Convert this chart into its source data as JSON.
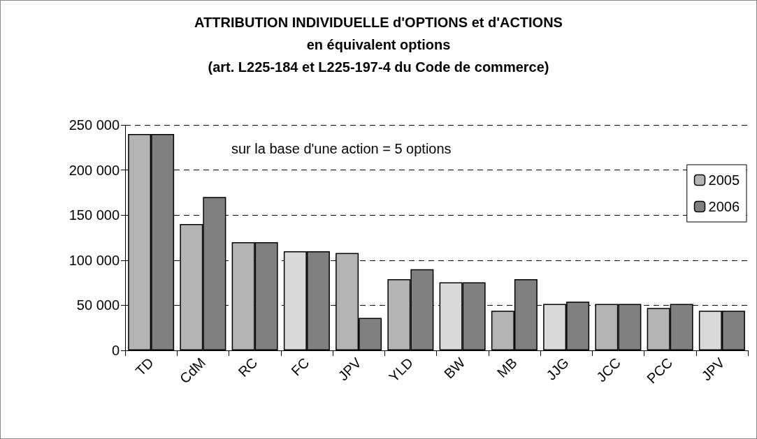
{
  "chart_data": {
    "type": "bar",
    "title": "ATTRIBUTION INDIVIDUELLE d'OPTIONS et d'ACTIONS\nen équivalent options\n(art. L225-184 et L225-197-4 du Code de commerce)",
    "categories": [
      "TD",
      "CdM",
      "RC",
      "FC",
      "JPV",
      "YLD",
      "BW",
      "MB",
      "JJG",
      "JCC",
      "PCC",
      "JPV"
    ],
    "series": [
      {
        "name": "2005",
        "color": "#b4b4b4",
        "colors": [
          "#b4b4b4",
          "#b4b4b4",
          "#b4b4b4",
          "#d9d9d9",
          "#b4b4b4",
          "#b4b4b4",
          "#d9d9d9",
          "#b4b4b4",
          "#d9d9d9",
          "#b4b4b4",
          "#b4b4b4",
          "#d9d9d9"
        ],
        "values": [
          240000,
          140000,
          120000,
          110000,
          108000,
          79000,
          75500,
          44000,
          51500,
          51500,
          47000,
          44000
        ]
      },
      {
        "name": "2006",
        "color": "#808080",
        "values": [
          240000,
          170000,
          120000,
          110000,
          36000,
          90000,
          75500,
          79000,
          54000,
          51500,
          51500,
          44000
        ]
      }
    ],
    "ylim": [
      0,
      250000
    ],
    "yticks": [
      {
        "value": 0,
        "label": "0"
      },
      {
        "value": 50000,
        "label": "50 000"
      },
      {
        "value": 100000,
        "label": "100 000"
      },
      {
        "value": 150000,
        "label": "150 000"
      },
      {
        "value": 200000,
        "label": "200 000"
      },
      {
        "value": 250000,
        "label": "250 000"
      }
    ],
    "grid": "y",
    "legend": "top right",
    "annotations": [
      "sur la base d'une action = 5 options"
    ]
  }
}
